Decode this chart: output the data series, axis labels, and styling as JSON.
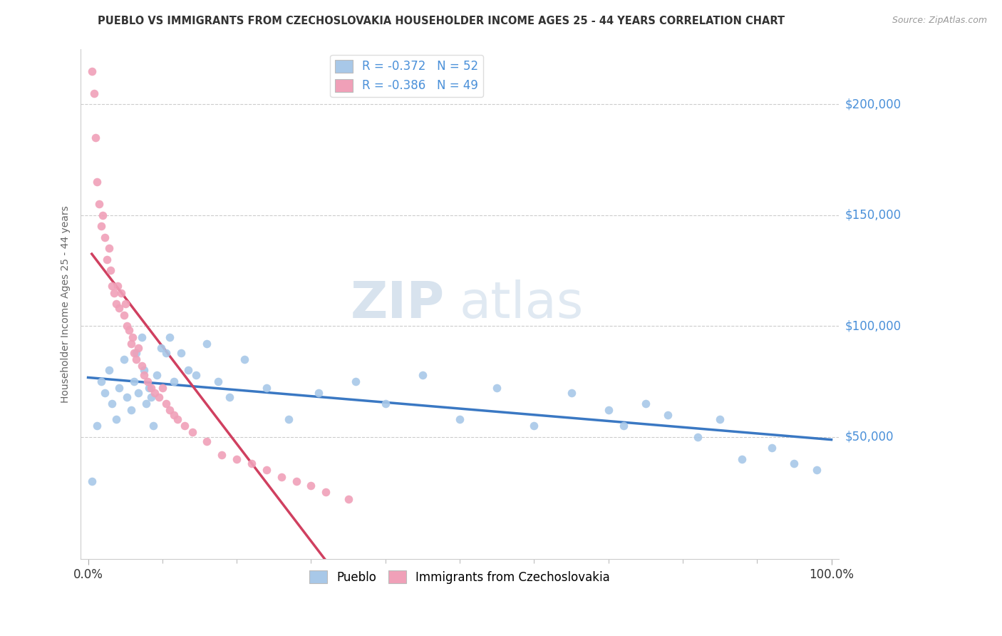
{
  "title": "PUEBLO VS IMMIGRANTS FROM CZECHOSLOVAKIA HOUSEHOLDER INCOME AGES 25 - 44 YEARS CORRELATION CHART",
  "source_text": "Source: ZipAtlas.com",
  "ylabel": "Householder Income Ages 25 - 44 years",
  "xlim": [
    -0.01,
    1.01
  ],
  "ylim": [
    -5000,
    225000
  ],
  "x_ticks": [
    0.0,
    1.0
  ],
  "x_tick_labels": [
    "0.0%",
    "100.0%"
  ],
  "y_tick_labels": [
    "$50,000",
    "$100,000",
    "$150,000",
    "$200,000"
  ],
  "y_tick_values": [
    50000,
    100000,
    150000,
    200000
  ],
  "legend_label1": "R = -0.372   N = 52",
  "legend_label2": "R = -0.386   N = 49",
  "legend_series1": "Pueblo",
  "legend_series2": "Immigrants from Czechoslovakia",
  "color1": "#A8C8E8",
  "color2": "#F0A0B8",
  "trendline1_color": "#3A78C3",
  "trendline2_color": "#D04060",
  "watermark_zip": "ZIP",
  "watermark_atlas": "atlas",
  "background_color": "#FFFFFF",
  "pueblo_x": [
    0.005,
    0.012,
    0.018,
    0.022,
    0.028,
    0.032,
    0.038,
    0.042,
    0.048,
    0.052,
    0.058,
    0.062,
    0.065,
    0.068,
    0.072,
    0.075,
    0.078,
    0.082,
    0.085,
    0.088,
    0.092,
    0.098,
    0.105,
    0.11,
    0.115,
    0.125,
    0.135,
    0.145,
    0.16,
    0.175,
    0.19,
    0.21,
    0.24,
    0.27,
    0.31,
    0.36,
    0.4,
    0.45,
    0.5,
    0.55,
    0.6,
    0.65,
    0.7,
    0.72,
    0.75,
    0.78,
    0.82,
    0.85,
    0.88,
    0.92,
    0.95,
    0.98
  ],
  "pueblo_y": [
    30000,
    55000,
    75000,
    70000,
    80000,
    65000,
    58000,
    72000,
    85000,
    68000,
    62000,
    75000,
    88000,
    70000,
    95000,
    80000,
    65000,
    72000,
    68000,
    55000,
    78000,
    90000,
    88000,
    95000,
    75000,
    88000,
    80000,
    78000,
    92000,
    75000,
    68000,
    85000,
    72000,
    58000,
    70000,
    75000,
    65000,
    78000,
    58000,
    72000,
    55000,
    70000,
    62000,
    55000,
    65000,
    60000,
    50000,
    58000,
    40000,
    45000,
    38000,
    35000
  ],
  "czecho_x": [
    0.005,
    0.008,
    0.01,
    0.012,
    0.015,
    0.018,
    0.02,
    0.022,
    0.025,
    0.028,
    0.03,
    0.032,
    0.035,
    0.038,
    0.04,
    0.042,
    0.045,
    0.048,
    0.05,
    0.052,
    0.055,
    0.058,
    0.06,
    0.062,
    0.065,
    0.068,
    0.072,
    0.075,
    0.08,
    0.085,
    0.09,
    0.095,
    0.1,
    0.105,
    0.11,
    0.115,
    0.12,
    0.13,
    0.14,
    0.16,
    0.18,
    0.2,
    0.22,
    0.24,
    0.26,
    0.28,
    0.3,
    0.32,
    0.35
  ],
  "czecho_y": [
    215000,
    205000,
    185000,
    165000,
    155000,
    145000,
    150000,
    140000,
    130000,
    135000,
    125000,
    118000,
    115000,
    110000,
    118000,
    108000,
    115000,
    105000,
    110000,
    100000,
    98000,
    92000,
    95000,
    88000,
    85000,
    90000,
    82000,
    78000,
    75000,
    72000,
    70000,
    68000,
    72000,
    65000,
    62000,
    60000,
    58000,
    55000,
    52000,
    48000,
    42000,
    40000,
    38000,
    35000,
    32000,
    30000,
    28000,
    25000,
    22000
  ]
}
